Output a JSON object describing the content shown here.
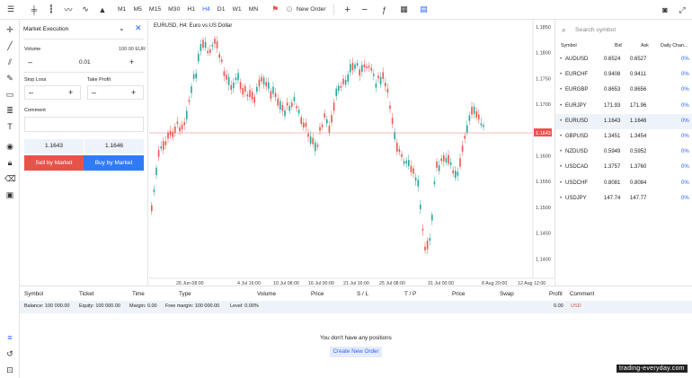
{
  "toolbar": {
    "timeframes": [
      "M1",
      "M5",
      "M15",
      "M30",
      "H1",
      "H4",
      "D1",
      "W1",
      "MN"
    ],
    "active_timeframe": "H4",
    "new_order_label": "New Order",
    "icons": [
      "menu-icon",
      "bar-chart-icon",
      "candles-icon",
      "line-chart-icon",
      "area-chart-icon",
      "mountain-chart-icon",
      "flag-icon",
      "plus-icon",
      "minus-icon",
      "indicators-icon",
      "calendar-icon",
      "template-icon",
      "screenshot-icon",
      "fullscreen-icon"
    ]
  },
  "left_tools": [
    "crosshair-icon",
    "line-icon",
    "channel-icon",
    "pencil-icon",
    "rectangle-icon",
    "fib-icon",
    "text-icon",
    "eye-icon",
    "lock-icon",
    "trash-icon",
    "layers-icon"
  ],
  "order_panel": {
    "title": "Market Execution",
    "volume_label": "Volume",
    "volume_unit": "100.00 EUR",
    "volume_value": "0.01",
    "stop_loss_label": "Stop Loss",
    "take_profit_label": "Take Profit",
    "comment_label": "Comment",
    "sell_price": "1.1643",
    "buy_price": "1.1646",
    "sell_button": "Sell by Market",
    "buy_button": "Buy by Market",
    "sell_color": "#e5534b",
    "buy_color": "#2f7bf5"
  },
  "chart": {
    "title": "EURUSD, H4: Euro vs US Dollar",
    "price_labels": [
      "1.1850",
      "1.1800",
      "1.1750",
      "1.1700",
      "1.1650",
      "1.1600",
      "1.1550",
      "1.1500",
      "1.1450",
      "1.1400"
    ],
    "current_price": "1.1643",
    "time_labels": [
      "26 Jun 08:00",
      "4 Jul 16:00",
      "10 Jul 08:00",
      "16 Jul 00:00",
      "21 Jul 16:00",
      "25 Jul 08:00",
      "31 Jul 00:00",
      "8 Aug 20:00",
      "12 Aug 12:00"
    ],
    "up_color": "#26a69a",
    "down_color": "#ef5350"
  },
  "watchlist": {
    "search_placeholder": "Search symbol",
    "headers": {
      "symbol": "Symbol",
      "bid": "Bid",
      "ask": "Ask",
      "change": "Daily Chan..."
    },
    "rows": [
      {
        "symbol": "AUDUSD",
        "bid": "0.6524",
        "ask": "0.6527",
        "change": "0%"
      },
      {
        "symbol": "EURCHF",
        "bid": "0.9408",
        "ask": "0.9411",
        "change": "0%"
      },
      {
        "symbol": "EURGBP",
        "bid": "0.8653",
        "ask": "0.8656",
        "change": "0%"
      },
      {
        "symbol": "EURJPY",
        "bid": "171.93",
        "ask": "171.96",
        "change": "0%"
      },
      {
        "symbol": "EURUSD",
        "bid": "1.1643",
        "ask": "1.1646",
        "change": "0%"
      },
      {
        "symbol": "GBPUSD",
        "bid": "1.3451",
        "ask": "1.3454",
        "change": "0%"
      },
      {
        "symbol": "NZDUSD",
        "bid": "0.5949",
        "ask": "0.5952",
        "change": "0%"
      },
      {
        "symbol": "USDCAD",
        "bid": "1.3757",
        "ask": "1.3760",
        "change": "0%"
      },
      {
        "symbol": "USDCHF",
        "bid": "0.8081",
        "ask": "0.8084",
        "change": "0%"
      },
      {
        "symbol": "USDJPY",
        "bid": "147.74",
        "ask": "147.77",
        "change": "0%"
      }
    ]
  },
  "positions": {
    "headers": {
      "symbol": "Symbol",
      "ticket": "Ticket",
      "time": "Time",
      "type": "Type",
      "volume": "Volume",
      "price": "Price",
      "sl": "S / L",
      "tp": "T / P",
      "price2": "Price",
      "swap": "Swap",
      "profit": "Profit",
      "comment": "Comment"
    },
    "balance": "Balance: 100 000.00",
    "equity": "Equity: 100 000.00",
    "margin": "Margin: 0.00",
    "free_margin": "Free margin: 100 000.00",
    "level": "Level: 0.00%",
    "profit_total": "0.00",
    "currency": "USD",
    "empty_text": "You don't have any positions",
    "create_order": "Create New Order"
  },
  "bottom_icons": [
    "list-icon",
    "history-icon",
    "terminal-icon"
  ],
  "watermark": "trading-everyday.com"
}
